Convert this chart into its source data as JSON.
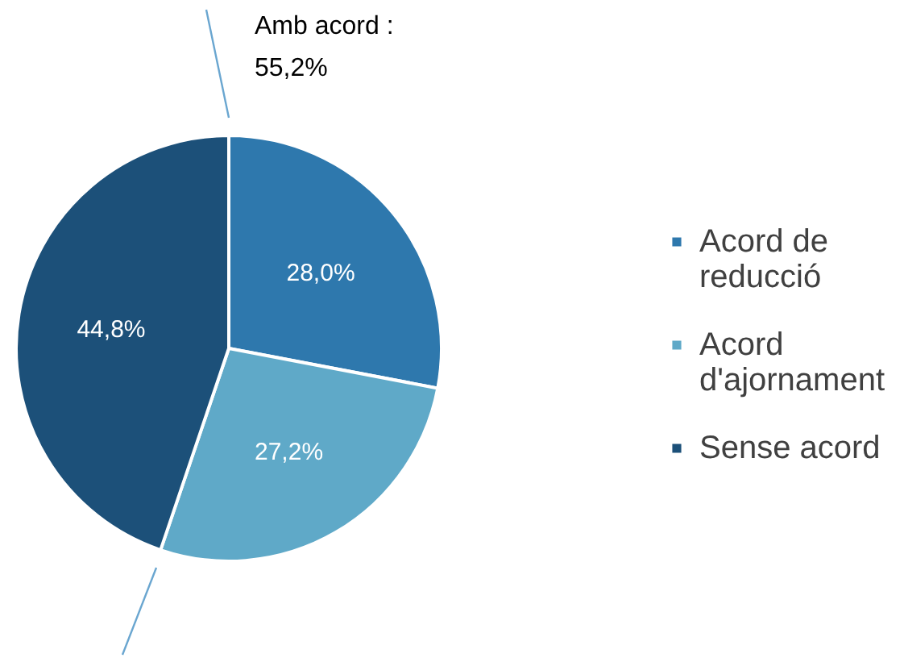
{
  "chart_data": {
    "type": "pie",
    "categories": [
      "Acord de reducció",
      "Acord d'ajornament",
      "Sense acord"
    ],
    "values": [
      28.0,
      27.2,
      44.8
    ],
    "value_labels": [
      "28,0%",
      "27,2%",
      "44,8%"
    ],
    "colors": [
      "#2e78ad",
      "#5fa9c8",
      "#1c5079"
    ],
    "annotations": [
      "Amb acord : 55,2%"
    ],
    "legend": "right"
  }
}
